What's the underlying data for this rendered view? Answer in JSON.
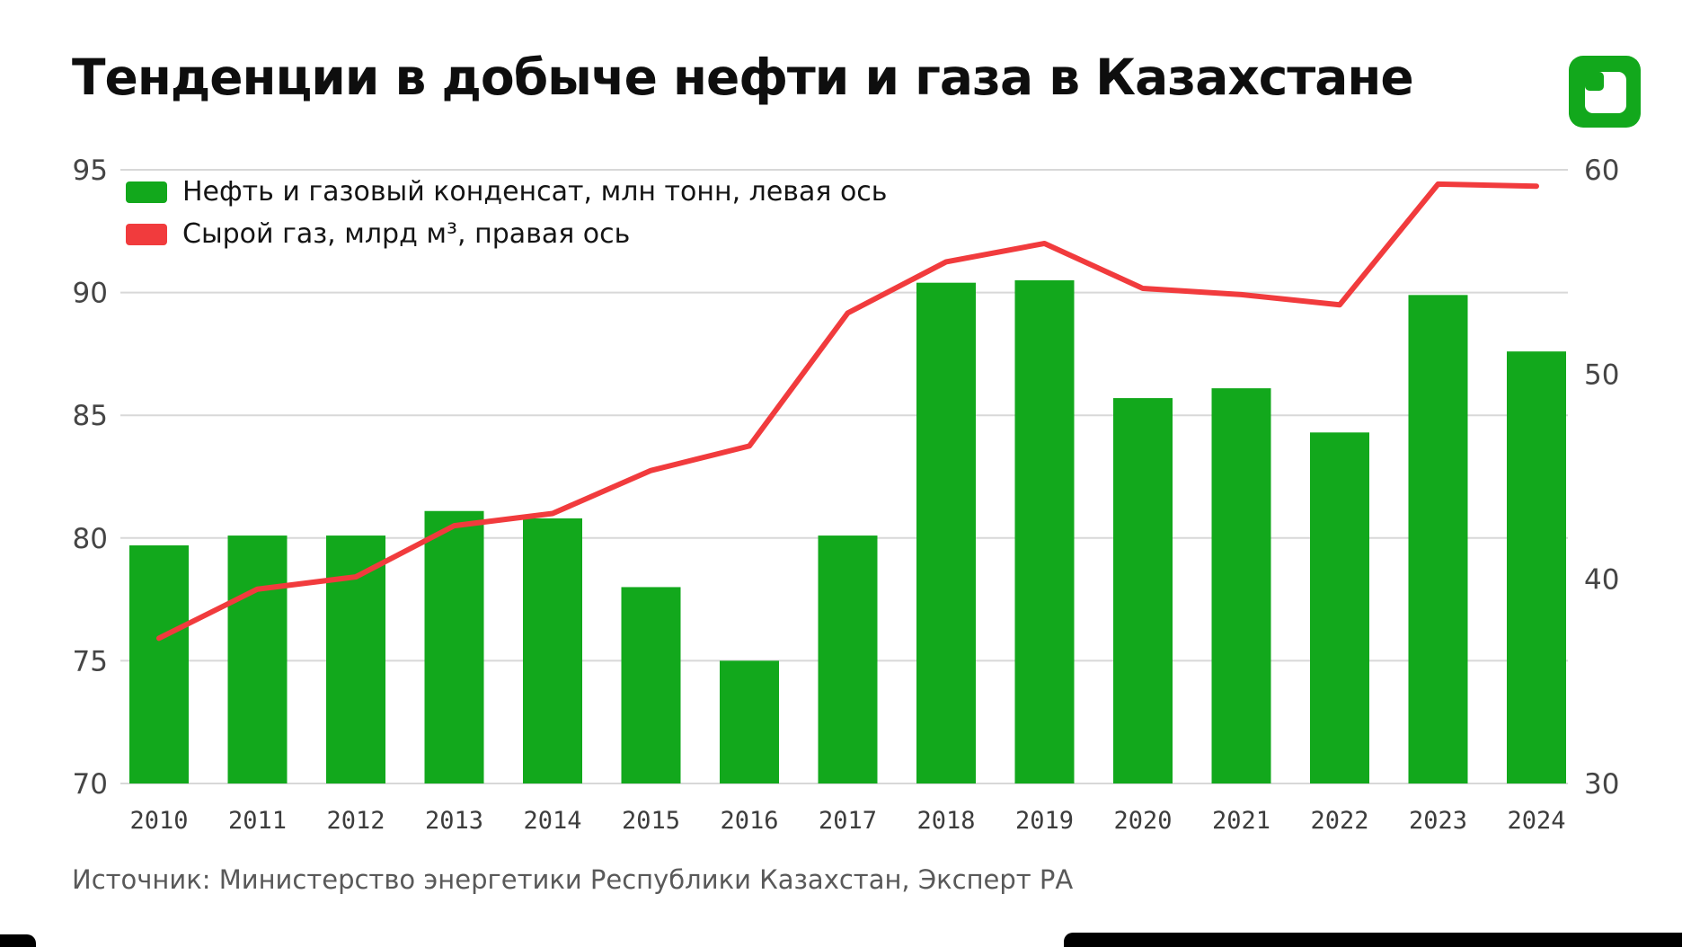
{
  "chart_data": {
    "type": "bar+line",
    "title": "Тенденции в добыче нефти и газа в Казахстане",
    "source": "Источник: Министерство энергетики Республики Казахстан, Эксперт РА",
    "categories": [
      "2010",
      "2011",
      "2012",
      "2013",
      "2014",
      "2015",
      "2016",
      "2017",
      "2018",
      "2019",
      "2020",
      "2021",
      "2022",
      "2023",
      "2024"
    ],
    "series": [
      {
        "name": "Нефть и газовый конденсат, млн тонн, левая ось",
        "type": "bar",
        "axis": "left",
        "color": "#12a81c",
        "values": [
          79.7,
          80.1,
          80.1,
          81.1,
          80.8,
          78.0,
          75.0,
          80.1,
          90.4,
          90.5,
          85.7,
          86.1,
          84.3,
          89.9,
          87.6
        ]
      },
      {
        "name": "Сырой газ, млрд м³, правая ось",
        "type": "line",
        "axis": "right",
        "color": "#f13b3d",
        "values": [
          37.1,
          39.5,
          40.1,
          42.6,
          43.2,
          45.3,
          46.5,
          53.0,
          55.5,
          56.4,
          54.2,
          53.9,
          53.4,
          59.3,
          59.2
        ]
      }
    ],
    "left_axis": {
      "min": 70,
      "max": 95,
      "ticks": [
        70,
        75,
        80,
        85,
        90,
        95
      ]
    },
    "right_axis": {
      "min": 30,
      "max": 60,
      "ticks": [
        30,
        40,
        50,
        60
      ]
    },
    "grid": true,
    "legend_position": "top-left"
  },
  "branding": {
    "logo_name": "green-square-brand-logo",
    "logo_color": "#12a81c"
  },
  "colors": {
    "grid": "#d8d8d8",
    "background": "#ffffff",
    "title_text": "#0e0e0e",
    "axis_text": "#454545",
    "source_text": "#595959",
    "frame_black": "#000000"
  }
}
